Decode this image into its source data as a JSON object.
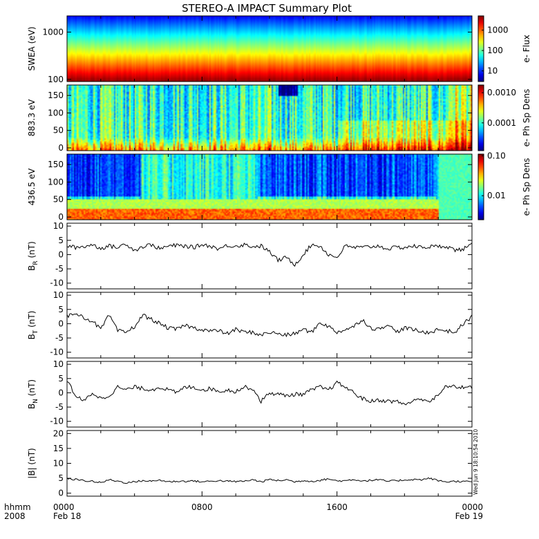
{
  "title": "STEREO-A IMPACT Summary Plot",
  "timestamp": "Wed Jun  9 18:10:54 2010",
  "time_axis": {
    "label_line1": "hhmm",
    "label_line2": "2008",
    "ticks": [
      {
        "hour": 0,
        "label": "0000",
        "date": "Feb 18"
      },
      {
        "hour": 8,
        "label": "0800",
        "date": ""
      },
      {
        "hour": 16,
        "label": "1600",
        "date": ""
      },
      {
        "hour": 24,
        "label": "0000",
        "date": "Feb 19"
      }
    ]
  },
  "chart_data": [
    {
      "type": "heatmap",
      "name": "swea",
      "ylabel": "SWEA (eV)",
      "ylog": true,
      "ylim": [
        90,
        2200
      ],
      "yticks": [
        {
          "v": 100,
          "label": "100"
        },
        {
          "v": 1000,
          "label": "1000"
        }
      ],
      "colorbar": {
        "label": "e- Flux",
        "log": true,
        "range": [
          3,
          5000
        ],
        "ticks": [
          {
            "v": 10,
            "label": "10"
          },
          {
            "v": 100,
            "label": "100"
          },
          {
            "v": 1000,
            "label": "1000"
          }
        ]
      }
    },
    {
      "type": "heatmap",
      "name": "pad883",
      "ylabel": "883.3 eV",
      "ylim": [
        -8,
        180
      ],
      "yticks": [
        {
          "v": 0,
          "label": "0"
        },
        {
          "v": 50,
          "label": "50"
        },
        {
          "v": 100,
          "label": "100"
        },
        {
          "v": 150,
          "label": "150"
        }
      ],
      "colorbar": {
        "label": "e- Ph Sp Dens",
        "log": true,
        "range": [
          1.2e-05,
          0.0018
        ],
        "ticks": [
          {
            "v": 0.0001,
            "label": "0.0001"
          },
          {
            "v": 0.001,
            "label": "0.0010"
          }
        ]
      }
    },
    {
      "type": "heatmap",
      "name": "pad436",
      "ylabel": "436.5 eV",
      "ylim": [
        -8,
        180
      ],
      "yticks": [
        {
          "v": 0,
          "label": "0"
        },
        {
          "v": 50,
          "label": "50"
        },
        {
          "v": 100,
          "label": "100"
        },
        {
          "v": 150,
          "label": "150"
        }
      ],
      "colorbar": {
        "label": "e- Ph Sp Dens",
        "log": true,
        "range": [
          0.0025,
          0.11
        ],
        "ticks": [
          {
            "v": 0.01,
            "label": "0.01"
          },
          {
            "v": 0.1,
            "label": "0.10"
          }
        ]
      }
    },
    {
      "type": "line",
      "name": "br",
      "ylabel": "B",
      "ysub": "R",
      "yunit": " (nT)",
      "ylim": [
        -12,
        11
      ],
      "yticks": [
        {
          "v": 10,
          "label": "10"
        },
        {
          "v": 5,
          "label": "5"
        },
        {
          "v": 0,
          "label": "0"
        },
        {
          "v": -5,
          "label": "-5"
        },
        {
          "v": -10,
          "label": "-10"
        }
      ],
      "x": [
        0,
        0.5,
        1,
        1.5,
        2,
        2.5,
        3,
        3.5,
        4,
        4.5,
        5,
        5.5,
        6,
        6.5,
        7,
        7.5,
        8,
        8.5,
        9,
        9.5,
        10,
        10.5,
        11,
        11.5,
        12,
        12.5,
        13,
        13.5,
        14,
        14.5,
        15,
        15.5,
        16,
        16.5,
        17,
        17.5,
        18,
        18.5,
        19,
        19.5,
        20,
        20.5,
        21,
        21.5,
        22,
        22.5,
        23,
        23.5,
        24
      ],
      "values": [
        3,
        2.5,
        2.8,
        3.5,
        2.2,
        3,
        2.5,
        3.8,
        1.5,
        2.8,
        3.5,
        2,
        3,
        3.2,
        3,
        2.5,
        3.5,
        3,
        2,
        3.2,
        3,
        3.5,
        2.8,
        3,
        1,
        -2,
        -1,
        -3.5,
        0,
        3.5,
        3,
        0,
        -1,
        3,
        2.5,
        2.5,
        2.8,
        3,
        2,
        2.5,
        2.5,
        3,
        2.5,
        2.8,
        2.8,
        3,
        1.5,
        2,
        3.5
      ]
    },
    {
      "type": "line",
      "name": "bt",
      "ylabel": "B",
      "ysub": "T",
      "yunit": " (nT)",
      "ylim": [
        -12,
        11
      ],
      "yticks": [
        {
          "v": 10,
          "label": "10"
        },
        {
          "v": 5,
          "label": "5"
        },
        {
          "v": 0,
          "label": "0"
        },
        {
          "v": -5,
          "label": "-5"
        },
        {
          "v": -10,
          "label": "-10"
        }
      ],
      "x": [
        0,
        0.5,
        1,
        1.5,
        2,
        2.5,
        3,
        3.5,
        4,
        4.5,
        5,
        5.5,
        6,
        6.5,
        7,
        7.5,
        8,
        8.5,
        9,
        9.5,
        10,
        10.5,
        11,
        11.5,
        12,
        12.5,
        13,
        13.5,
        14,
        14.5,
        15,
        15.5,
        16,
        16.5,
        17,
        17.5,
        18,
        18.5,
        19,
        19.5,
        20,
        20.5,
        21,
        21.5,
        22,
        22.5,
        23,
        23.5,
        24
      ],
      "values": [
        2.5,
        4,
        2,
        1,
        -2,
        3,
        -2.5,
        -3,
        -1,
        3,
        1.5,
        0,
        -1.5,
        -2,
        -0.5,
        -1.5,
        -2,
        -2.5,
        -2.5,
        -3.5,
        -2,
        -3,
        -3,
        -4,
        -3,
        -3.5,
        -4,
        -3.5,
        -2,
        -3,
        0.5,
        -1,
        -3,
        -2,
        -1,
        1.5,
        -1.5,
        -2,
        0,
        -3,
        -1.5,
        -2,
        -3,
        -3,
        -2,
        -2.5,
        -3,
        0,
        2.5
      ]
    },
    {
      "type": "line",
      "name": "bn",
      "ylabel": "B",
      "ysub": "N",
      "yunit": " (nT)",
      "ylim": [
        -12,
        11
      ],
      "yticks": [
        {
          "v": 10,
          "label": "10"
        },
        {
          "v": 5,
          "label": "5"
        },
        {
          "v": 0,
          "label": "0"
        },
        {
          "v": -5,
          "label": "-5"
        },
        {
          "v": -10,
          "label": "-10"
        }
      ],
      "x": [
        0,
        0.5,
        1,
        1.5,
        2,
        2.5,
        3,
        3.5,
        4,
        4.5,
        5,
        5.5,
        6,
        6.5,
        7,
        7.5,
        8,
        8.5,
        9,
        9.5,
        10,
        10.5,
        11,
        11.5,
        12,
        12.5,
        13,
        13.5,
        14,
        14.5,
        15,
        15.5,
        16,
        16.5,
        17,
        17.5,
        18,
        18.5,
        19,
        19.5,
        20,
        20.5,
        21,
        21.5,
        22,
        22.5,
        23,
        23.5,
        24
      ],
      "values": [
        4.5,
        -1,
        -3,
        0,
        -2,
        -1,
        2,
        1,
        2,
        1.5,
        1,
        2,
        1,
        0,
        2,
        2,
        1,
        1.5,
        0.5,
        1,
        0.5,
        2,
        1.5,
        -3,
        0,
        -0.5,
        -1,
        -0.5,
        -0.5,
        1,
        2,
        1,
        3.5,
        2,
        0,
        -2,
        -3,
        -2.5,
        -3,
        -3,
        -4,
        -3,
        -2,
        -3,
        -1,
        2.5,
        2,
        2,
        2
      ]
    },
    {
      "type": "line",
      "name": "bmag",
      "ylabel": "|B| (nT)",
      "ylim": [
        -1,
        21
      ],
      "yticks": [
        {
          "v": 20,
          "label": "20"
        },
        {
          "v": 15,
          "label": "15"
        },
        {
          "v": 10,
          "label": "10"
        },
        {
          "v": 5,
          "label": "5"
        },
        {
          "v": 0,
          "label": "0"
        }
      ],
      "x": [
        0,
        0.5,
        1,
        1.5,
        2,
        2.5,
        3,
        3.5,
        4,
        4.5,
        5,
        5.5,
        6,
        6.5,
        7,
        7.5,
        8,
        8.5,
        9,
        9.5,
        10,
        10.5,
        11,
        11.5,
        12,
        12.5,
        13,
        13.5,
        14,
        14.5,
        15,
        15.5,
        16,
        16.5,
        17,
        17.5,
        18,
        18.5,
        19,
        19.5,
        20,
        20.5,
        21,
        21.5,
        22,
        22.5,
        23,
        23.5,
        24
      ],
      "values": [
        4.8,
        4.6,
        4.2,
        4,
        3.5,
        4.5,
        4,
        3.5,
        3.8,
        4.2,
        4,
        4.4,
        3.8,
        4,
        4,
        4.1,
        3.8,
        4,
        4.2,
        4,
        3.9,
        4,
        4.5,
        3.8,
        4.6,
        4.2,
        4.5,
        3.8,
        4.2,
        4,
        4.3,
        4.8,
        4.1,
        4.2,
        4.6,
        4.1,
        4.3,
        4.5,
        4,
        4.2,
        4.4,
        4.6,
        4.5,
        5,
        4.2,
        3.8,
        4,
        3.9,
        3.8
      ]
    }
  ]
}
